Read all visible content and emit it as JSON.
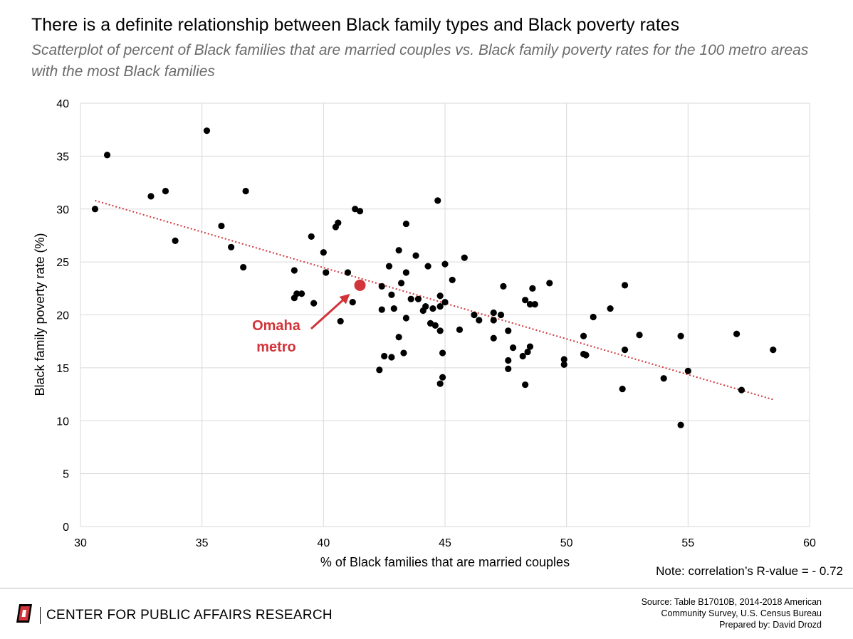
{
  "chart_data": {
    "type": "scatter",
    "title": "There is a definite relationship between Black family types and Black poverty rates",
    "subtitle": "Scatterplot of percent of Black families that are married couples vs. Black family poverty rates for the 100 metro areas with the most Black families",
    "xlabel": "% of Black families that are married couples",
    "ylabel": "Black family poverty rate (%)",
    "xlim": [
      30,
      60
    ],
    "ylim": [
      0,
      40
    ],
    "xticks": [
      30,
      35,
      40,
      45,
      50,
      55,
      60
    ],
    "yticks": [
      0,
      5,
      10,
      15,
      20,
      25,
      30,
      35,
      40
    ],
    "grid": true,
    "trendline": {
      "style": "dotted",
      "color": "#d1343a",
      "x": [
        30.6,
        58.5
      ],
      "y": [
        30.8,
        12.0
      ]
    },
    "highlight": {
      "label_line1": "Omaha",
      "label_line2": "metro",
      "x": 41.5,
      "y": 22.8,
      "color": "#d1343a"
    },
    "points": [
      [
        30.6,
        30.0
      ],
      [
        31.1,
        35.1
      ],
      [
        32.9,
        31.2
      ],
      [
        33.5,
        31.7
      ],
      [
        33.9,
        27.0
      ],
      [
        35.2,
        37.4
      ],
      [
        35.8,
        28.4
      ],
      [
        36.2,
        26.4
      ],
      [
        36.7,
        24.5
      ],
      [
        36.8,
        31.7
      ],
      [
        38.8,
        24.2
      ],
      [
        38.8,
        21.6
      ],
      [
        38.9,
        22.0
      ],
      [
        39.1,
        22.0
      ],
      [
        39.5,
        27.4
      ],
      [
        39.6,
        21.1
      ],
      [
        40.0,
        25.9
      ],
      [
        40.1,
        24.0
      ],
      [
        40.5,
        28.3
      ],
      [
        40.6,
        28.7
      ],
      [
        40.7,
        19.4
      ],
      [
        41.0,
        24.0
      ],
      [
        41.2,
        21.2
      ],
      [
        41.3,
        30.0
      ],
      [
        41.5,
        29.8
      ],
      [
        42.3,
        14.8
      ],
      [
        42.4,
        20.5
      ],
      [
        42.4,
        22.7
      ],
      [
        42.5,
        16.1
      ],
      [
        42.7,
        24.6
      ],
      [
        42.8,
        21.9
      ],
      [
        42.8,
        16.0
      ],
      [
        42.9,
        20.6
      ],
      [
        43.1,
        26.1
      ],
      [
        43.1,
        17.9
      ],
      [
        43.2,
        23.0
      ],
      [
        43.3,
        16.4
      ],
      [
        43.4,
        28.6
      ],
      [
        43.4,
        24.0
      ],
      [
        43.4,
        19.7
      ],
      [
        43.6,
        21.5
      ],
      [
        43.8,
        25.6
      ],
      [
        43.9,
        21.5
      ],
      [
        44.1,
        20.4
      ],
      [
        44.2,
        20.8
      ],
      [
        44.3,
        24.6
      ],
      [
        44.4,
        19.2
      ],
      [
        44.5,
        20.6
      ],
      [
        44.6,
        19.0
      ],
      [
        44.7,
        30.8
      ],
      [
        44.8,
        21.8
      ],
      [
        44.8,
        20.8
      ],
      [
        44.8,
        18.5
      ],
      [
        44.8,
        13.5
      ],
      [
        44.9,
        16.4
      ],
      [
        44.9,
        14.1
      ],
      [
        45.0,
        24.8
      ],
      [
        45.0,
        21.2
      ],
      [
        45.3,
        23.3
      ],
      [
        45.6,
        18.6
      ],
      [
        45.8,
        25.4
      ],
      [
        46.2,
        20.0
      ],
      [
        46.4,
        19.5
      ],
      [
        47.0,
        20.2
      ],
      [
        47.0,
        19.5
      ],
      [
        47.0,
        17.8
      ],
      [
        47.3,
        20.0
      ],
      [
        47.4,
        22.7
      ],
      [
        47.6,
        18.5
      ],
      [
        47.6,
        15.7
      ],
      [
        47.6,
        14.9
      ],
      [
        47.8,
        16.9
      ],
      [
        48.2,
        16.1
      ],
      [
        48.3,
        21.4
      ],
      [
        48.3,
        13.4
      ],
      [
        48.4,
        16.5
      ],
      [
        48.5,
        17.0
      ],
      [
        48.5,
        21.0
      ],
      [
        48.6,
        22.5
      ],
      [
        48.7,
        21.0
      ],
      [
        49.3,
        23.0
      ],
      [
        49.9,
        15.8
      ],
      [
        49.9,
        15.3
      ],
      [
        50.7,
        18.0
      ],
      [
        50.7,
        16.3
      ],
      [
        50.8,
        16.2
      ],
      [
        51.1,
        19.8
      ],
      [
        51.8,
        20.6
      ],
      [
        52.3,
        13.0
      ],
      [
        52.4,
        22.8
      ],
      [
        52.4,
        16.7
      ],
      [
        53.0,
        18.1
      ],
      [
        54.0,
        14.0
      ],
      [
        54.7,
        18.0
      ],
      [
        54.7,
        9.6
      ],
      [
        55.0,
        14.7
      ],
      [
        57.0,
        18.2
      ],
      [
        57.2,
        12.9
      ],
      [
        58.5,
        16.7
      ]
    ]
  },
  "note": "Note: correlation’s R-value = - 0.72",
  "footer": {
    "org": "CENTER FOR PUBLIC AFFAIRS RESEARCH",
    "source_line1": "Source: Table B17010B, 2014-2018 American",
    "source_line2": "Community Survey, U.S. Census Bureau",
    "source_line3": "Prepared by: David Drozd"
  },
  "colors": {
    "points": "#000000",
    "accent": "#d1343a",
    "grid": "#d9d9d9"
  },
  "icons": {
    "logo": "university-o-logo-icon"
  }
}
